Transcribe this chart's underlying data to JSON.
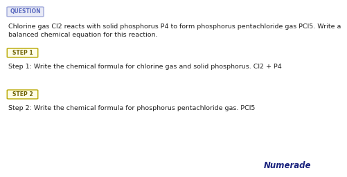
{
  "background_color": "#ffffff",
  "question_label": "QUESTION",
  "question_label_color": "#5c6bc0",
  "question_label_bg": "#e8eaf6",
  "question_label_border": "#9fa8da",
  "question_text_line1": "Chlorine gas Cl2 reacts with solid phosphorus P4 to form phosphorus pentachloride gas PCl5. Write a",
  "question_text_line2": "balanced chemical equation for this reaction.",
  "step1_label": "STEP 1",
  "step1_label_color": "#6d6000",
  "step1_label_bg": "#fefde8",
  "step1_label_border": "#b8a800",
  "step1_text": "Step 1: Write the chemical formula for chlorine gas and solid phosphorus. Cl2 + P4",
  "step2_label": "STEP 2",
  "step2_label_color": "#6d6000",
  "step2_label_bg": "#fefde8",
  "step2_label_border": "#b8a800",
  "step2_text": "Step 2: Write the chemical formula for phosphorus pentachloride gas. PCl5",
  "numerade_text": "Numerade",
  "numerade_color": "#1a237e",
  "body_text_color": "#222222",
  "body_fontsize": 6.8,
  "label_fontsize": 5.5
}
